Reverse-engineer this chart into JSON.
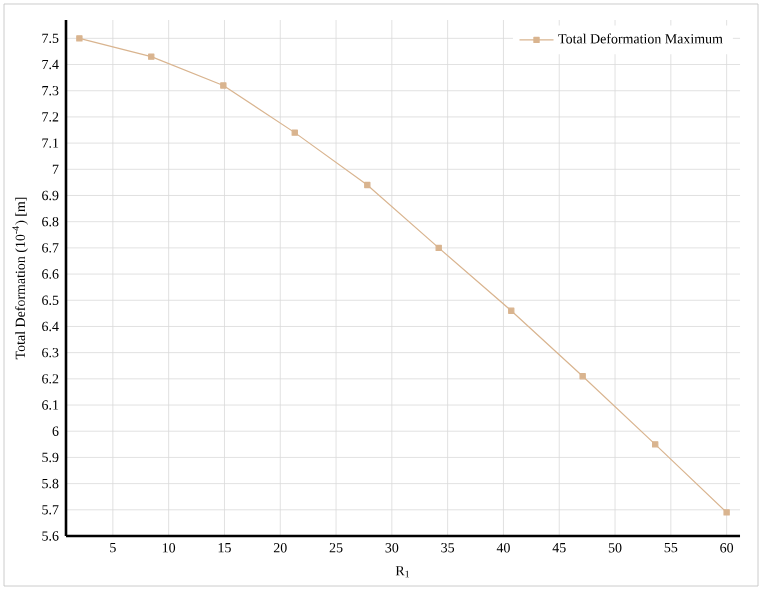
{
  "chart_data": {
    "type": "line",
    "xlabel": "R$_{1}$",
    "ylabel": "Total Deformation (10$^{-4}$) [m]",
    "x": [
      2,
      8.44,
      14.9,
      21.3,
      27.8,
      34.2,
      40.7,
      47.1,
      53.6,
      60
    ],
    "series": [
      {
        "name": "Total Deformation Maximum",
        "color": "#d9b48f",
        "values": [
          7.5,
          7.43,
          7.32,
          7.14,
          6.94,
          6.7,
          6.46,
          6.21,
          5.95,
          5.69
        ]
      }
    ],
    "xlim": [
      0.8,
      61.2
    ],
    "ylim": [
      5.6,
      7.57
    ],
    "xticks": [
      5,
      10,
      15,
      20,
      25,
      30,
      35,
      40,
      45,
      50,
      55,
      60
    ],
    "yticks": [
      5.6,
      5.7,
      5.8,
      5.9,
      6,
      6.1,
      6.2,
      6.3,
      6.4,
      6.5,
      6.6,
      6.7,
      6.8,
      6.9,
      7,
      7.1,
      7.2,
      7.3,
      7.4,
      7.5
    ],
    "grid": true,
    "legend": "top right",
    "marker": "square",
    "line_style": "solid"
  }
}
